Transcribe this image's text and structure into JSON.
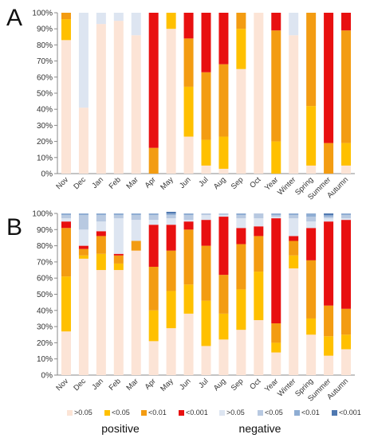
{
  "colors": {
    "pos_gt05": "#fce4d6",
    "pos_lt05": "#ffc000",
    "pos_lt01": "#f39c12",
    "pos_lt001": "#e81010",
    "neg_gt05": "#dde5f1",
    "neg_lt05": "#b8c9e1",
    "neg_lt01": "#8fadd3",
    "neg_lt001": "#4f78b0"
  },
  "legend": {
    "entries": [
      {
        "label": ">0.05",
        "color": "#fce4d6"
      },
      {
        "label": "<0.05",
        "color": "#ffc000"
      },
      {
        "label": "<0.01",
        "color": "#f39c12"
      },
      {
        "label": "<0.001",
        "color": "#e81010"
      },
      {
        "label": ">0.05",
        "color": "#dde5f1"
      },
      {
        "label": "<0.05",
        "color": "#b8c9e1"
      },
      {
        "label": "<0.01",
        "color": "#8fadd3"
      },
      {
        "label": "<0.001",
        "color": "#4f78b0"
      }
    ],
    "group_labels": [
      "positive",
      "negative"
    ]
  },
  "chart_data": [
    {
      "type": "bar",
      "stacked": true,
      "panel_label": "A",
      "categories": [
        "Nov",
        "Dec",
        "Jan",
        "Feb",
        "Mar",
        "Apr",
        "May",
        "Jun",
        "Jul",
        "Aug",
        "Sep",
        "Oct",
        "Year",
        "Winter",
        "Spring",
        "Summer",
        "Autumn"
      ],
      "yticks": [
        "0%",
        "10%",
        "20%",
        "30%",
        "40%",
        "50%",
        "60%",
        "70%",
        "80%",
        "90%",
        "100%"
      ],
      "ylim": [
        0,
        100
      ],
      "series": [
        {
          "key": "pos_gt05",
          "values": [
            83,
            41,
            93,
            95,
            86,
            0,
            90,
            23,
            5,
            3,
            65,
            100,
            0,
            86,
            5,
            0,
            5
          ]
        },
        {
          "key": "pos_lt05",
          "values": [
            13,
            0,
            0,
            0,
            0,
            0,
            10,
            31,
            16,
            20,
            25,
            0,
            20,
            0,
            37,
            0,
            14
          ]
        },
        {
          "key": "pos_lt01",
          "values": [
            4,
            0,
            0,
            0,
            0,
            16,
            0,
            30,
            42,
            45,
            10,
            0,
            69,
            0,
            58,
            19,
            70
          ]
        },
        {
          "key": "pos_lt001",
          "values": [
            0,
            0,
            0,
            0,
            0,
            84,
            0,
            16,
            37,
            32,
            0,
            0,
            11,
            0,
            0,
            81,
            11
          ]
        },
        {
          "key": "neg_gt05",
          "values": [
            0,
            59,
            7,
            5,
            14,
            0,
            0,
            0,
            0,
            0,
            0,
            0,
            0,
            14,
            0,
            0,
            0
          ]
        },
        {
          "key": "neg_lt05",
          "values": [
            0,
            0,
            0,
            0,
            0,
            0,
            0,
            0,
            0,
            0,
            0,
            0,
            0,
            0,
            0,
            0,
            0
          ]
        },
        {
          "key": "neg_lt01",
          "values": [
            0,
            0,
            0,
            0,
            0,
            0,
            0,
            0,
            0,
            0,
            0,
            0,
            0,
            0,
            0,
            0,
            0
          ]
        },
        {
          "key": "neg_lt001",
          "values": [
            0,
            0,
            0,
            0,
            0,
            0,
            0,
            0,
            0,
            0,
            0,
            0,
            0,
            0,
            0,
            0,
            0
          ]
        }
      ]
    },
    {
      "type": "bar",
      "stacked": true,
      "panel_label": "B",
      "categories": [
        "Nov",
        "Dec",
        "Jan",
        "Feb",
        "Mar",
        "Apr",
        "May",
        "Jun",
        "Jul",
        "Aug",
        "Sep",
        "Oct",
        "Year",
        "Winter",
        "Spring",
        "Summer",
        "Autumn"
      ],
      "yticks": [
        "0%",
        "10%",
        "20%",
        "30%",
        "40%",
        "50%",
        "60%",
        "70%",
        "80%",
        "90%",
        "100%"
      ],
      "ylim": [
        0,
        100
      ],
      "series": [
        {
          "key": "pos_gt05",
          "values": [
            27,
            72,
            65,
            65,
            77,
            21,
            29,
            38,
            18,
            22,
            28,
            34,
            14,
            66,
            25,
            12,
            16
          ]
        },
        {
          "key": "pos_lt05",
          "values": [
            34,
            2,
            10,
            4,
            0,
            19,
            23,
            18,
            28,
            16,
            25,
            30,
            6,
            8,
            10,
            12,
            9
          ]
        },
        {
          "key": "pos_lt01",
          "values": [
            30,
            4,
            11,
            5,
            6,
            27,
            25,
            34,
            34,
            24,
            28,
            22,
            12,
            9,
            36,
            19,
            16
          ]
        },
        {
          "key": "pos_lt001",
          "values": [
            4,
            2,
            3,
            1,
            0,
            26,
            16,
            5,
            16,
            36,
            10,
            6,
            65,
            3,
            20,
            52,
            55
          ]
        },
        {
          "key": "neg_gt05",
          "values": [
            2,
            10,
            6,
            22,
            13,
            3,
            4,
            1,
            3,
            1,
            6,
            5,
            1,
            11,
            4,
            2,
            1
          ]
        },
        {
          "key": "neg_lt05",
          "values": [
            2,
            9,
            4,
            2,
            3,
            3,
            2,
            3,
            1,
            1,
            2,
            3,
            1,
            2,
            3,
            1,
            2
          ]
        },
        {
          "key": "neg_lt01",
          "values": [
            1,
            1,
            1,
            1,
            1,
            1,
            1,
            1,
            0,
            0,
            1,
            0,
            1,
            1,
            2,
            1,
            1
          ]
        },
        {
          "key": "neg_lt001",
          "values": [
            0,
            0,
            0,
            0,
            0,
            0,
            1,
            0,
            0,
            0,
            0,
            0,
            0,
            0,
            0,
            1,
            0
          ]
        }
      ]
    }
  ]
}
